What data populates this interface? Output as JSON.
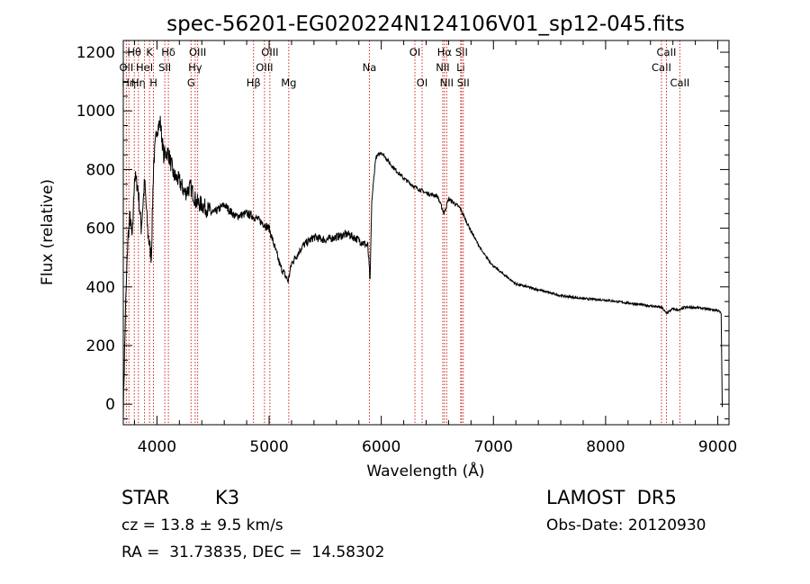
{
  "chart_data": {
    "type": "line",
    "title": "spec-56201-EG020224N124106V01_sp12-045.fits",
    "xlabel": "Wavelength (Å)",
    "ylabel": "Flux (relative)",
    "xlim": [
      3700,
      9100
    ],
    "ylim": [
      -70,
      1240
    ],
    "xticks": [
      4000,
      5000,
      6000,
      7000,
      8000,
      9000
    ],
    "yticks": [
      0,
      200,
      400,
      600,
      800,
      1000,
      1200
    ],
    "grid": false,
    "series": [
      {
        "x": [
          3700,
          3720,
          3740,
          3760,
          3780,
          3800,
          3830,
          3860,
          3890,
          3920,
          3950,
          3970,
          4000,
          4030,
          4060,
          4100,
          4150,
          4200,
          4250,
          4300,
          4350,
          4400,
          4500,
          4600,
          4700,
          4800,
          4860,
          4900,
          5000,
          5100,
          5170,
          5200,
          5300,
          5400,
          5500,
          5600,
          5700,
          5800,
          5880,
          5900,
          5915,
          5950,
          6000,
          6100,
          6200,
          6300,
          6400,
          6500,
          6560,
          6600,
          6700,
          6800,
          6900,
          7000,
          7200,
          7400,
          7600,
          7800,
          8000,
          8200,
          8400,
          8500,
          8540,
          8600,
          8660,
          8700,
          8800,
          8900,
          9000,
          9030,
          9040
        ],
        "y": [
          -20,
          320,
          560,
          640,
          560,
          780,
          740,
          600,
          760,
          580,
          500,
          820,
          940,
          960,
          850,
          860,
          780,
          760,
          720,
          740,
          690,
          680,
          650,
          680,
          640,
          650,
          640,
          630,
          600,
          470,
          420,
          480,
          540,
          570,
          560,
          570,
          580,
          560,
          540,
          420,
          690,
          840,
          860,
          810,
          770,
          740,
          720,
          710,
          650,
          700,
          670,
          590,
          520,
          470,
          410,
          390,
          370,
          360,
          355,
          345,
          335,
          330,
          310,
          325,
          320,
          330,
          330,
          325,
          320,
          310,
          -10
        ]
      }
    ],
    "lines": [
      {
        "x": 3727,
        "labels": [
          "OII"
        ],
        "rows": [
          2
        ]
      },
      {
        "x": 3750,
        "labels": [
          "Hη"
        ],
        "rows": [
          3
        ]
      },
      {
        "x": 3798,
        "labels": [
          "Hθ"
        ],
        "rows": [
          1
        ]
      },
      {
        "x": 3835,
        "labels": [
          "Hη"
        ],
        "rows": [
          3
        ]
      },
      {
        "x": 3889,
        "labels": [
          "HeI"
        ],
        "rows": [
          2
        ]
      },
      {
        "x": 3934,
        "labels": [
          "K"
        ],
        "rows": [
          1
        ]
      },
      {
        "x": 3969,
        "labels": [
          "H"
        ],
        "rows": [
          3
        ]
      },
      {
        "x": 4070,
        "labels": [
          "SII"
        ],
        "rows": [
          2
        ]
      },
      {
        "x": 4102,
        "labels": [
          "Hδ"
        ],
        "rows": [
          1
        ]
      },
      {
        "x": 4304,
        "labels": [
          "G"
        ],
        "rows": [
          3
        ]
      },
      {
        "x": 4341,
        "labels": [
          "Hγ"
        ],
        "rows": [
          2
        ]
      },
      {
        "x": 4363,
        "labels": [
          "OIII"
        ],
        "rows": [
          1
        ]
      },
      {
        "x": 4861,
        "labels": [
          "Hβ"
        ],
        "rows": [
          3
        ]
      },
      {
        "x": 4959,
        "labels": [
          "OIII"
        ],
        "rows": [
          2
        ]
      },
      {
        "x": 5007,
        "labels": [
          "OIII"
        ],
        "rows": [
          1
        ]
      },
      {
        "x": 5175,
        "labels": [
          "Mg"
        ],
        "rows": [
          3
        ]
      },
      {
        "x": 5894,
        "labels": [
          "Na"
        ],
        "rows": [
          2
        ]
      },
      {
        "x": 6300,
        "labels": [
          "OI"
        ],
        "rows": [
          1
        ]
      },
      {
        "x": 6364,
        "labels": [
          "OI"
        ],
        "rows": [
          3
        ]
      },
      {
        "x": 6548,
        "labels": [
          "NII"
        ],
        "rows": [
          2
        ]
      },
      {
        "x": 6563,
        "labels": [
          "Hα"
        ],
        "rows": [
          1
        ]
      },
      {
        "x": 6583,
        "labels": [
          "NII"
        ],
        "rows": [
          3
        ]
      },
      {
        "x": 6708,
        "labels": [
          "Li"
        ],
        "rows": [
          2
        ]
      },
      {
        "x": 6716,
        "labels": [
          "SII"
        ],
        "rows": [
          1
        ]
      },
      {
        "x": 6731,
        "labels": [
          "SII"
        ],
        "rows": [
          3
        ]
      },
      {
        "x": 8498,
        "labels": [
          "CaII"
        ],
        "rows": [
          2
        ]
      },
      {
        "x": 8542,
        "labels": [
          "CaII"
        ],
        "rows": [
          1
        ]
      },
      {
        "x": 8662,
        "labels": [
          "CaII"
        ],
        "rows": [
          3
        ]
      }
    ]
  },
  "info": {
    "class": "STAR",
    "subclass": "K3",
    "survey": "LAMOST  DR5",
    "cz": "cz = 13.8 ± 9.5 km/s",
    "obs_date": "Obs-Date: 20120930",
    "radec": "RA =  31.73835, DEC =  14.58302"
  }
}
